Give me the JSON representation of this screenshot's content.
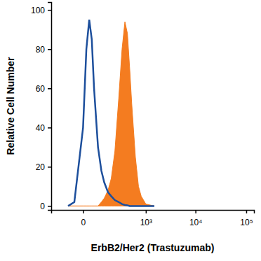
{
  "chart_data": {
    "type": "histogram",
    "x_label": "ErbB2/Her2 (Trastuzumab)",
    "y_label": "Relative Cell Number",
    "log": "x",
    "x": [
      -60,
      -30,
      0,
      10,
      20,
      30,
      40,
      60,
      80,
      100,
      130,
      160,
      200,
      250,
      300,
      350,
      400,
      450,
      500,
      600,
      700,
      800,
      1000,
      1500
    ],
    "series": [
      {
        "type": "area",
        "color": "#f47c20",
        "values": [
          0,
          0,
          0,
          0,
          0,
          0,
          0,
          0,
          2,
          4,
          8,
          14,
          28,
          55,
          80,
          94,
          88,
          70,
          52,
          25,
          10,
          5,
          1,
          0
        ]
      },
      {
        "type": "line",
        "color": "#1d4f9c",
        "values": [
          0,
          2,
          40,
          80,
          95,
          85,
          60,
          30,
          18,
          12,
          7,
          5,
          3,
          2,
          1,
          0.5,
          0.3,
          0,
          0,
          0,
          0,
          0,
          0,
          0
        ]
      }
    ],
    "xlim": [
      -200,
      142000
    ],
    "xticks": [
      0,
      {
        "value": 1000,
        "label": "10³"
      },
      {
        "value": 10000,
        "label": "10⁴"
      },
      {
        "value": 100000,
        "label": "10⁵"
      }
    ],
    "ylim": [
      -2,
      104
    ],
    "yticks": [
      0,
      20,
      40,
      60,
      80,
      100
    ]
  }
}
